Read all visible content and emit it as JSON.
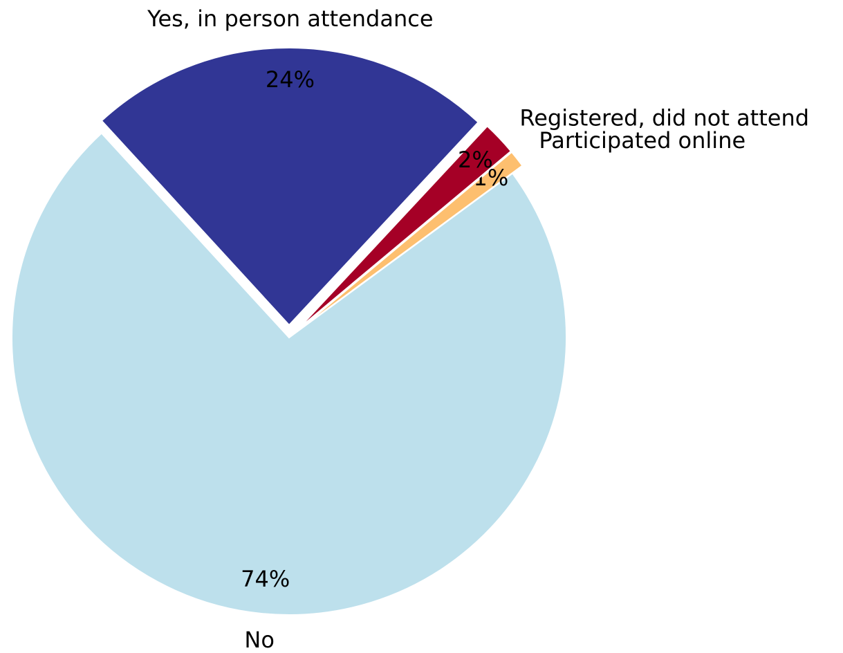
{
  "chart_data": {
    "type": "pie",
    "categories": [
      "Yes, in person attendance",
      "No",
      "Participated online",
      "Registered, did not attend"
    ],
    "values": [
      24,
      74,
      1,
      2
    ],
    "value_labels": [
      "24%",
      "74%",
      "1%",
      "2%"
    ],
    "colors": [
      "#313695",
      "#bde0ec",
      "#fdbf6f",
      "#a50026"
    ]
  }
}
